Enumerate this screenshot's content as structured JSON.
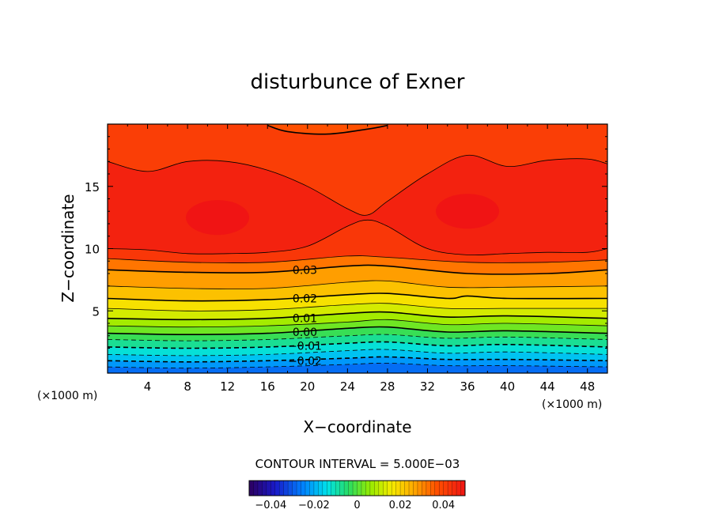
{
  "chart_data": {
    "type": "heatmap",
    "title": "disturbunce of Exner",
    "xlabel": "X−coordinate",
    "ylabel": "Z−coordinate",
    "x_unit": "(×1000 m)",
    "y_unit": "(×1000 m)",
    "xlim": [
      0,
      50
    ],
    "ylim": [
      0,
      20
    ],
    "x_ticks": [
      4,
      8,
      12,
      16,
      20,
      24,
      28,
      32,
      36,
      40,
      44,
      48
    ],
    "y_ticks": [
      5,
      10,
      15
    ],
    "contour_interval_text": "CONTOUR INTERVAL = 5.000E−03",
    "contour_interval": 0.005,
    "contour_labels": [
      {
        "text": "0.03",
        "value": 0.03,
        "x": 18,
        "z": 8.3
      },
      {
        "text": "0.02",
        "value": 0.02,
        "x": 18,
        "z": 6.0
      },
      {
        "text": "0.01",
        "value": 0.01,
        "x": 18,
        "z": 4.4
      },
      {
        "text": "0.00",
        "value": 0.0,
        "x": 18,
        "z": 3.3
      },
      {
        "text": "−0.01",
        "value": -0.01,
        "x": 18,
        "z": 2.2
      },
      {
        "text": "−0.02",
        "value": -0.02,
        "x": 18,
        "z": 1.0
      }
    ],
    "contour_lines": [
      {
        "value": 0.045,
        "style": "solid",
        "points": [
          [
            0,
            17.0
          ],
          [
            4,
            16.2
          ],
          [
            8,
            17.0
          ],
          [
            12,
            17.0
          ],
          [
            16,
            16.3
          ],
          [
            20,
            15.0
          ],
          [
            24,
            13.2
          ],
          [
            26,
            12.7
          ],
          [
            28,
            13.8
          ],
          [
            32,
            16.0
          ],
          [
            36,
            17.5
          ],
          [
            40,
            16.6
          ],
          [
            44,
            17.1
          ],
          [
            48,
            17.2
          ],
          [
            50,
            16.8
          ]
        ]
      },
      {
        "value": 0.045,
        "style": "solid",
        "points": [
          [
            0,
            10.0
          ],
          [
            4,
            9.9
          ],
          [
            8,
            9.6
          ],
          [
            12,
            9.6
          ],
          [
            16,
            9.7
          ],
          [
            20,
            10.2
          ],
          [
            24,
            11.8
          ],
          [
            26,
            12.3
          ],
          [
            28,
            11.8
          ],
          [
            32,
            10.0
          ],
          [
            36,
            9.5
          ],
          [
            40,
            9.6
          ],
          [
            44,
            9.7
          ],
          [
            48,
            9.7
          ],
          [
            50,
            10.0
          ]
        ]
      },
      {
        "value": 0.04,
        "style": "solid",
        "points": [
          [
            28,
            19.9
          ],
          [
            26,
            19.6
          ],
          [
            22,
            19.2
          ],
          [
            18,
            19.4
          ],
          [
            16,
            19.9
          ]
        ]
      },
      {
        "value": 0.035,
        "style": "solid",
        "points": [
          [
            0,
            9.2
          ],
          [
            8,
            8.9
          ],
          [
            16,
            8.9
          ],
          [
            24,
            9.4
          ],
          [
            28,
            9.3
          ],
          [
            36,
            8.9
          ],
          [
            44,
            8.9
          ],
          [
            50,
            9.1
          ]
        ]
      },
      {
        "value": 0.03,
        "style": "solid",
        "points": [
          [
            0,
            8.3
          ],
          [
            8,
            8.1
          ],
          [
            16,
            8.1
          ],
          [
            24,
            8.6
          ],
          [
            28,
            8.6
          ],
          [
            36,
            8.0
          ],
          [
            44,
            8.0
          ],
          [
            50,
            8.3
          ]
        ]
      },
      {
        "value": 0.025,
        "style": "solid",
        "points": [
          [
            0,
            7.0
          ],
          [
            8,
            6.8
          ],
          [
            16,
            6.8
          ],
          [
            24,
            7.3
          ],
          [
            28,
            7.4
          ],
          [
            34,
            6.9
          ],
          [
            40,
            6.9
          ],
          [
            50,
            7.0
          ]
        ]
      },
      {
        "value": 0.02,
        "style": "solid",
        "points": [
          [
            0,
            6.0
          ],
          [
            8,
            5.8
          ],
          [
            16,
            5.9
          ],
          [
            24,
            6.3
          ],
          [
            28,
            6.4
          ],
          [
            34,
            6.0
          ],
          [
            36,
            6.2
          ],
          [
            40,
            6.0
          ],
          [
            50,
            6.0
          ]
        ]
      },
      {
        "value": 0.015,
        "style": "solid",
        "points": [
          [
            0,
            5.2
          ],
          [
            8,
            5.0
          ],
          [
            16,
            5.1
          ],
          [
            24,
            5.5
          ],
          [
            28,
            5.6
          ],
          [
            34,
            5.2
          ],
          [
            40,
            5.2
          ],
          [
            50,
            5.2
          ]
        ]
      },
      {
        "value": 0.01,
        "style": "solid",
        "points": [
          [
            0,
            4.4
          ],
          [
            8,
            4.3
          ],
          [
            16,
            4.4
          ],
          [
            24,
            4.8
          ],
          [
            28,
            4.9
          ],
          [
            34,
            4.5
          ],
          [
            40,
            4.6
          ],
          [
            50,
            4.4
          ]
        ]
      },
      {
        "value": 0.005,
        "style": "solid",
        "points": [
          [
            0,
            3.8
          ],
          [
            8,
            3.7
          ],
          [
            16,
            3.8
          ],
          [
            24,
            4.1
          ],
          [
            28,
            4.3
          ],
          [
            34,
            3.9
          ],
          [
            40,
            4.0
          ],
          [
            50,
            3.8
          ]
        ]
      },
      {
        "value": 0.0,
        "style": "solid",
        "points": [
          [
            0,
            3.2
          ],
          [
            8,
            3.1
          ],
          [
            16,
            3.2
          ],
          [
            24,
            3.6
          ],
          [
            28,
            3.7
          ],
          [
            34,
            3.3
          ],
          [
            40,
            3.4
          ],
          [
            50,
            3.2
          ]
        ]
      },
      {
        "value": -0.005,
        "style": "dashed",
        "points": [
          [
            0,
            2.7
          ],
          [
            8,
            2.6
          ],
          [
            16,
            2.7
          ],
          [
            24,
            3.0
          ],
          [
            28,
            3.1
          ],
          [
            34,
            2.8
          ],
          [
            40,
            2.9
          ],
          [
            50,
            2.7
          ]
        ]
      },
      {
        "value": -0.01,
        "style": "dashed",
        "points": [
          [
            0,
            2.1
          ],
          [
            8,
            2.0
          ],
          [
            16,
            2.1
          ],
          [
            24,
            2.4
          ],
          [
            28,
            2.5
          ],
          [
            34,
            2.2
          ],
          [
            40,
            2.3
          ],
          [
            50,
            2.1
          ]
        ]
      },
      {
        "value": -0.015,
        "style": "dashed",
        "points": [
          [
            0,
            1.5
          ],
          [
            8,
            1.4
          ],
          [
            16,
            1.5
          ],
          [
            24,
            1.8
          ],
          [
            28,
            1.9
          ],
          [
            34,
            1.6
          ],
          [
            40,
            1.7
          ],
          [
            50,
            1.5
          ]
        ]
      },
      {
        "value": -0.02,
        "style": "dashed",
        "points": [
          [
            0,
            1.0
          ],
          [
            8,
            0.9
          ],
          [
            16,
            1.0
          ],
          [
            24,
            1.2
          ],
          [
            28,
            1.3
          ],
          [
            34,
            1.1
          ],
          [
            40,
            1.1
          ],
          [
            50,
            1.0
          ]
        ]
      },
      {
        "value": -0.025,
        "style": "dashed",
        "points": [
          [
            0,
            0.5
          ],
          [
            8,
            0.4
          ],
          [
            16,
            0.5
          ],
          [
            24,
            0.7
          ],
          [
            28,
            0.8
          ],
          [
            34,
            0.6
          ],
          [
            40,
            0.6
          ],
          [
            50,
            0.5
          ]
        ]
      }
    ],
    "field_maxima": [
      {
        "x": 11,
        "z": 12.5,
        "value": 0.048
      },
      {
        "x": 36,
        "z": 13.0,
        "value": 0.047
      }
    ],
    "colorbar": {
      "min": -0.05,
      "max": 0.05,
      "ticks": [
        {
          "label": "−0.04",
          "value": -0.04
        },
        {
          "label": "−0.02",
          "value": -0.02
        },
        {
          "label": "0",
          "value": 0
        },
        {
          "label": "0.02",
          "value": 0.02
        },
        {
          "label": "0.04",
          "value": 0.04
        }
      ]
    },
    "grid": false,
    "colormap": "rainbow"
  }
}
